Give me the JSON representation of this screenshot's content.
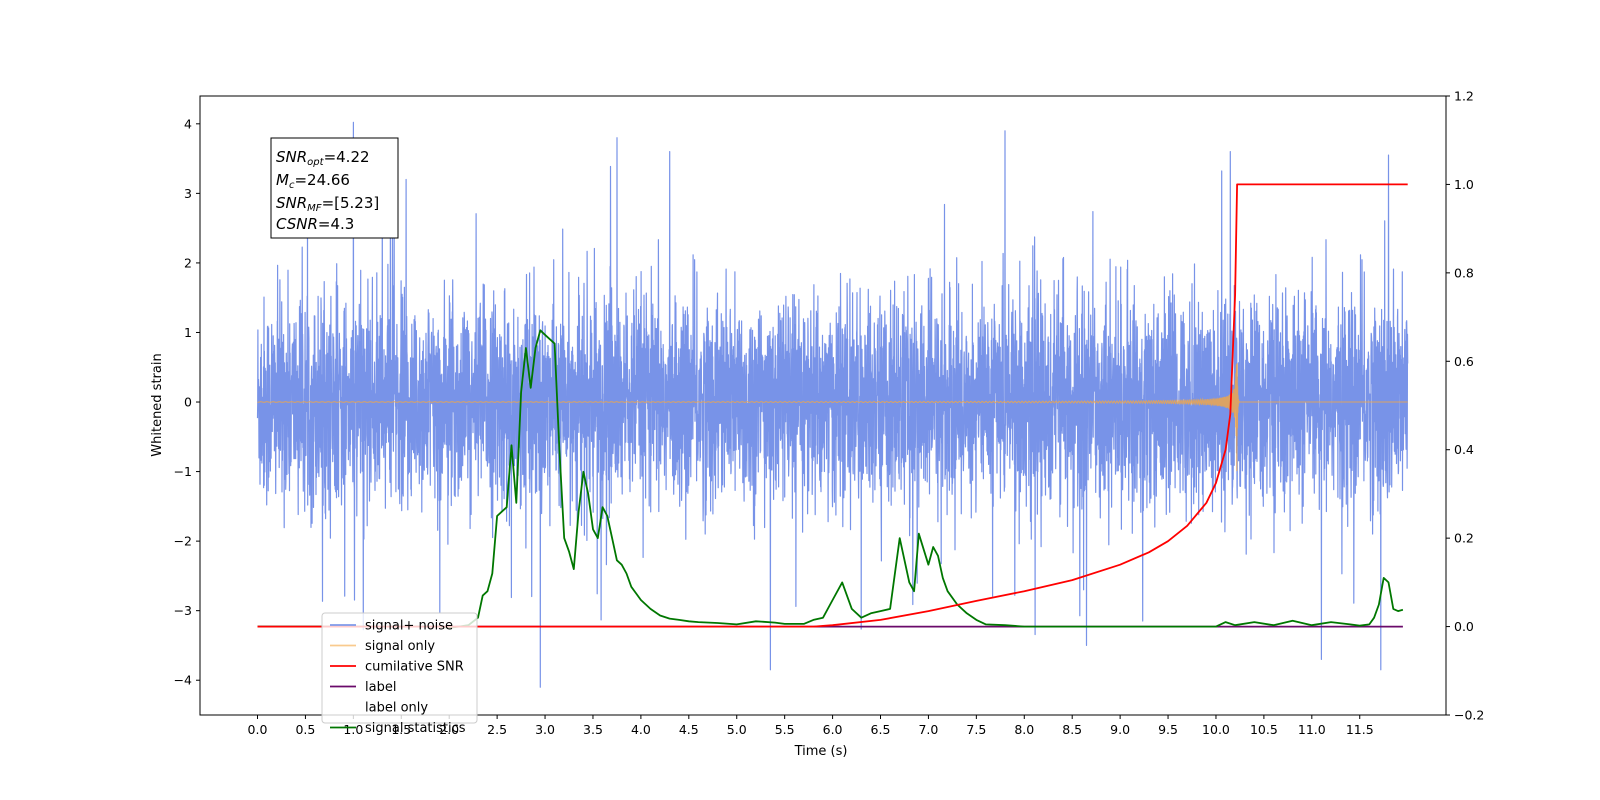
{
  "chart_data": {
    "type": "line",
    "title": "",
    "xlabel": "Time (s)",
    "ylabel": "Whitened strain",
    "y2label": "",
    "xlim": [
      -0.6,
      12.4
    ],
    "ylim": [
      -4.5,
      4.4
    ],
    "y2lim": [
      -0.2,
      1.2
    ],
    "x_ticks": [
      0.0,
      0.5,
      1.0,
      1.5,
      2.0,
      2.5,
      3.0,
      3.5,
      4.0,
      4.5,
      5.0,
      5.5,
      6.0,
      6.5,
      7.0,
      7.5,
      8.0,
      8.5,
      9.0,
      9.5,
      10.0,
      10.5,
      11.0,
      11.5
    ],
    "y_ticks": [
      -4,
      -3,
      -2,
      -1,
      0,
      1,
      2,
      3,
      4
    ],
    "y2_ticks": [
      -0.2,
      0.0,
      0.2,
      0.4,
      0.6,
      0.8,
      1.0,
      1.2
    ],
    "grid": false,
    "legend_position": "lower-left",
    "info_box": {
      "snr_opt": {
        "base": "SNR",
        "sub": "opt",
        "value": "=4.22"
      },
      "mc": {
        "base": "M",
        "sub": "c",
        "value": "=24.66"
      },
      "snr_mf": {
        "base": "SNR",
        "sub": "MF",
        "value": "=[5.23]"
      },
      "csnr": {
        "base": "CSNR",
        "value": "=4.3"
      }
    },
    "series": [
      {
        "name": "signal+ noise",
        "color": "#7893e8",
        "axis": "left",
        "note": "dense whitened noise, roughly -2.2 to 2.4 with spikes to about 4",
        "x_range": [
          0.0,
          12.0
        ],
        "amplitude": 1.2,
        "spikes": [
          [
            1.0,
            4.02
          ],
          [
            3.75,
            3.8
          ],
          [
            7.8,
            3.9
          ],
          [
            11.8,
            3.55
          ],
          [
            10.15,
            3.6
          ],
          [
            2.95,
            -4.1
          ],
          [
            11.72,
            -3.85
          ],
          [
            5.35,
            -3.85
          ],
          [
            11.1,
            -3.7
          ],
          [
            8.65,
            -3.5
          ],
          [
            1.55,
            3.2
          ],
          [
            4.3,
            3.6
          ]
        ]
      },
      {
        "name": "signal only",
        "color": "#f5a742",
        "axis": "left",
        "x_range": [
          0.0,
          12.0
        ],
        "merger_time": 10.22,
        "peak_amplitude": 1.0
      },
      {
        "name": "cumilative SNR",
        "color": "#ff0000",
        "axis": "right",
        "x": [
          0.0,
          5.0,
          5.8,
          6.0,
          6.5,
          7.0,
          7.5,
          8.0,
          8.5,
          9.0,
          9.3,
          9.5,
          9.7,
          9.9,
          10.0,
          10.1,
          10.15,
          10.2,
          10.22,
          12.0
        ],
        "y": [
          0.0,
          0.0,
          0.0,
          0.003,
          0.015,
          0.035,
          0.058,
          0.08,
          0.105,
          0.14,
          0.168,
          0.193,
          0.228,
          0.28,
          0.325,
          0.4,
          0.48,
          0.75,
          1.0,
          1.0
        ]
      },
      {
        "name": "label",
        "color": "#6a0a6a",
        "axis": "right",
        "x": [
          0.0,
          11.95
        ],
        "y": [
          0.0,
          0.0
        ]
      },
      {
        "name": "label only",
        "color": "#ffffff",
        "axis": "right",
        "x": [],
        "y": []
      },
      {
        "name": "signal statistics",
        "color": "#007700",
        "axis": "right",
        "x": [
          0.0,
          1.9,
          2.0,
          2.1,
          2.2,
          2.3,
          2.35,
          2.4,
          2.45,
          2.5,
          2.55,
          2.6,
          2.65,
          2.7,
          2.75,
          2.8,
          2.85,
          2.9,
          2.95,
          3.0,
          3.05,
          3.1,
          3.15,
          3.2,
          3.25,
          3.3,
          3.35,
          3.4,
          3.45,
          3.5,
          3.55,
          3.6,
          3.65,
          3.7,
          3.75,
          3.8,
          3.85,
          3.9,
          3.95,
          4.0,
          4.1,
          4.2,
          4.3,
          4.4,
          4.5,
          4.6,
          4.8,
          5.0,
          5.2,
          5.4,
          5.5,
          5.7,
          5.8,
          5.9,
          6.0,
          6.1,
          6.2,
          6.3,
          6.4,
          6.5,
          6.6,
          6.7,
          6.8,
          6.85,
          6.9,
          7.0,
          7.05,
          7.1,
          7.15,
          7.2,
          7.3,
          7.4,
          7.5,
          7.6,
          7.8,
          8.0,
          9.0,
          9.5,
          10.0,
          10.1,
          10.2,
          10.4,
          10.6,
          10.8,
          11.0,
          11.2,
          11.4,
          11.5,
          11.6,
          11.65,
          11.7,
          11.75,
          11.8,
          11.85,
          11.9,
          11.95
        ],
        "y": [
          0.0,
          0.0,
          -0.003,
          0.0,
          0.003,
          0.02,
          0.07,
          0.08,
          0.12,
          0.25,
          0.26,
          0.27,
          0.41,
          0.28,
          0.53,
          0.63,
          0.54,
          0.63,
          0.67,
          0.66,
          0.65,
          0.64,
          0.4,
          0.2,
          0.17,
          0.13,
          0.26,
          0.35,
          0.3,
          0.22,
          0.2,
          0.27,
          0.25,
          0.2,
          0.15,
          0.14,
          0.12,
          0.09,
          0.075,
          0.06,
          0.04,
          0.025,
          0.018,
          0.015,
          0.012,
          0.01,
          0.008,
          0.005,
          0.012,
          0.009,
          0.006,
          0.006,
          0.015,
          0.02,
          0.06,
          0.1,
          0.04,
          0.02,
          0.03,
          0.035,
          0.04,
          0.2,
          0.1,
          0.08,
          0.21,
          0.14,
          0.18,
          0.16,
          0.11,
          0.08,
          0.05,
          0.03,
          0.015,
          0.005,
          0.003,
          0.0,
          0.0,
          0.0,
          0.0,
          0.01,
          0.003,
          0.01,
          0.003,
          0.013,
          0.003,
          0.01,
          0.005,
          0.002,
          0.005,
          0.02,
          0.05,
          0.11,
          0.1,
          0.04,
          0.035,
          0.038
        ]
      }
    ]
  }
}
